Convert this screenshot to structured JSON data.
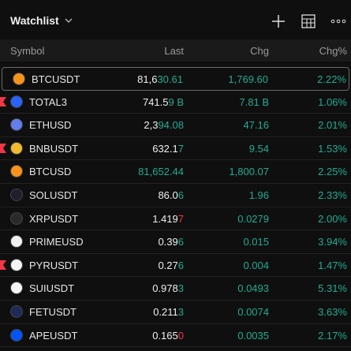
{
  "header": {
    "title": "Watchlist"
  },
  "columns": [
    "Symbol",
    "Last",
    "Chg",
    "Chg%"
  ],
  "rows": [
    {
      "symbol": "BTCUSDT",
      "last": {
        "base": "81,6",
        "tick": "30.61"
      },
      "tick_color": "green",
      "chg": "1,769.60",
      "chg_pct": "2.22%",
      "icon_color": "#f7931a",
      "selected": true
    },
    {
      "symbol": "TOTAL3",
      "last": {
        "base": "741.5",
        "tick": "9 B"
      },
      "tick_color": "green",
      "chg": "7.81 B",
      "chg_pct": "1.06%",
      "icon_color": "#2962ff",
      "flagged": true
    },
    {
      "symbol": "ETHUSD",
      "last": {
        "base": "2,3",
        "tick": "94.08"
      },
      "tick_color": "green",
      "chg": "47.16",
      "chg_pct": "2.01%",
      "icon_color": "#627eea"
    },
    {
      "symbol": "BNBUSDT",
      "last": {
        "base": "632.1",
        "tick": "7"
      },
      "tick_color": "green",
      "chg": "9.54",
      "chg_pct": "1.53%",
      "icon_color": "#f3ba2f",
      "flagged": true
    },
    {
      "symbol": "BTCUSD",
      "last": {
        "tick": "81,652.44"
      },
      "tick_color": "green",
      "chg": "1,800.07",
      "chg_pct": "2.25%",
      "icon_color": "#f7931a"
    },
    {
      "symbol": "SOLUSDT",
      "last": {
        "base": "86.0",
        "tick": "6"
      },
      "tick_color": "green",
      "chg": "1.96",
      "chg_pct": "2.33%",
      "icon_color": "#1f1f2e"
    },
    {
      "symbol": "XRPUSDT",
      "last": {
        "base": "1.419",
        "tick": "7"
      },
      "tick_color": "red",
      "chg": "0.0279",
      "chg_pct": "2.00%",
      "icon_color": "#2a2a2a"
    },
    {
      "symbol": "PRIMEUSD",
      "last": {
        "base": "0.39",
        "tick": "6"
      },
      "tick_color": "green",
      "chg": "0.015",
      "chg_pct": "3.94%",
      "icon_color": "#f2f2f2"
    },
    {
      "symbol": "PYRUSDT",
      "last": {
        "base": "0.27",
        "tick": "6"
      },
      "tick_color": "green",
      "chg": "0.004",
      "chg_pct": "1.47%",
      "icon_color": "#f5f5f5",
      "flagged": true
    },
    {
      "symbol": "SUIUSDT",
      "last": {
        "base": "0.978",
        "tick": "3"
      },
      "tick_color": "green",
      "chg": "0.0493",
      "chg_pct": "5.31%",
      "icon_color": "#f5f5f5"
    },
    {
      "symbol": "FETUSDT",
      "last": {
        "base": "0.211",
        "tick": "3"
      },
      "tick_color": "green",
      "chg": "0.0074",
      "chg_pct": "3.63%",
      "icon_color": "#1d2a5a"
    },
    {
      "symbol": "APEUSDT",
      "last": {
        "base": "0.165",
        "tick": "0"
      },
      "tick_color": "red",
      "chg": "0.0035",
      "chg_pct": "2.17%",
      "icon_color": "#0054f9"
    }
  ]
}
